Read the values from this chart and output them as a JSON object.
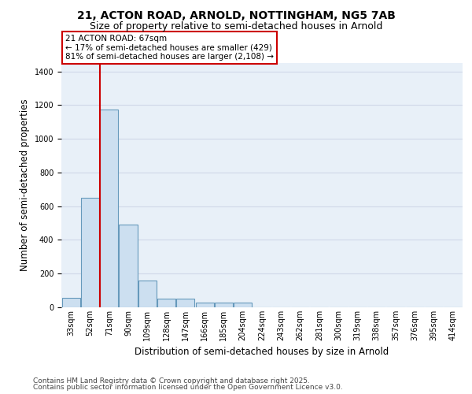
{
  "title_line1": "21, ACTON ROAD, ARNOLD, NOTTINGHAM, NG5 7AB",
  "title_line2": "Size of property relative to semi-detached houses in Arnold",
  "xlabel": "Distribution of semi-detached houses by size in Arnold",
  "ylabel": "Number of semi-detached properties",
  "bin_labels": [
    "33sqm",
    "52sqm",
    "71sqm",
    "90sqm",
    "109sqm",
    "128sqm",
    "147sqm",
    "166sqm",
    "185sqm",
    "204sqm",
    "224sqm",
    "243sqm",
    "262sqm",
    "281sqm",
    "300sqm",
    "319sqm",
    "338sqm",
    "357sqm",
    "376sqm",
    "395sqm",
    "414sqm"
  ],
  "bar_heights": [
    55,
    650,
    1175,
    490,
    160,
    50,
    50,
    30,
    30,
    30,
    0,
    0,
    0,
    0,
    0,
    0,
    0,
    0,
    0,
    0,
    0
  ],
  "bar_color": "#ccdff0",
  "bar_edge_color": "#6699bb",
  "vline_color": "#cc0000",
  "ylim": [
    0,
    1450
  ],
  "yticks": [
    0,
    200,
    400,
    600,
    800,
    1000,
    1200,
    1400
  ],
  "annotation_text": "21 ACTON ROAD: 67sqm\n← 17% of semi-detached houses are smaller (429)\n81% of semi-detached houses are larger (2,108) →",
  "annotation_box_color": "#ffffff",
  "annotation_box_edge_color": "#cc0000",
  "footnote1": "Contains HM Land Registry data © Crown copyright and database right 2025.",
  "footnote2": "Contains public sector information licensed under the Open Government Licence v3.0.",
  "background_color": "#e8f0f8",
  "grid_color": "#d0d8e8",
  "title_fontsize": 10,
  "subtitle_fontsize": 9,
  "axis_label_fontsize": 8.5,
  "tick_fontsize": 7,
  "annotation_fontsize": 7.5,
  "footnote_fontsize": 6.5
}
